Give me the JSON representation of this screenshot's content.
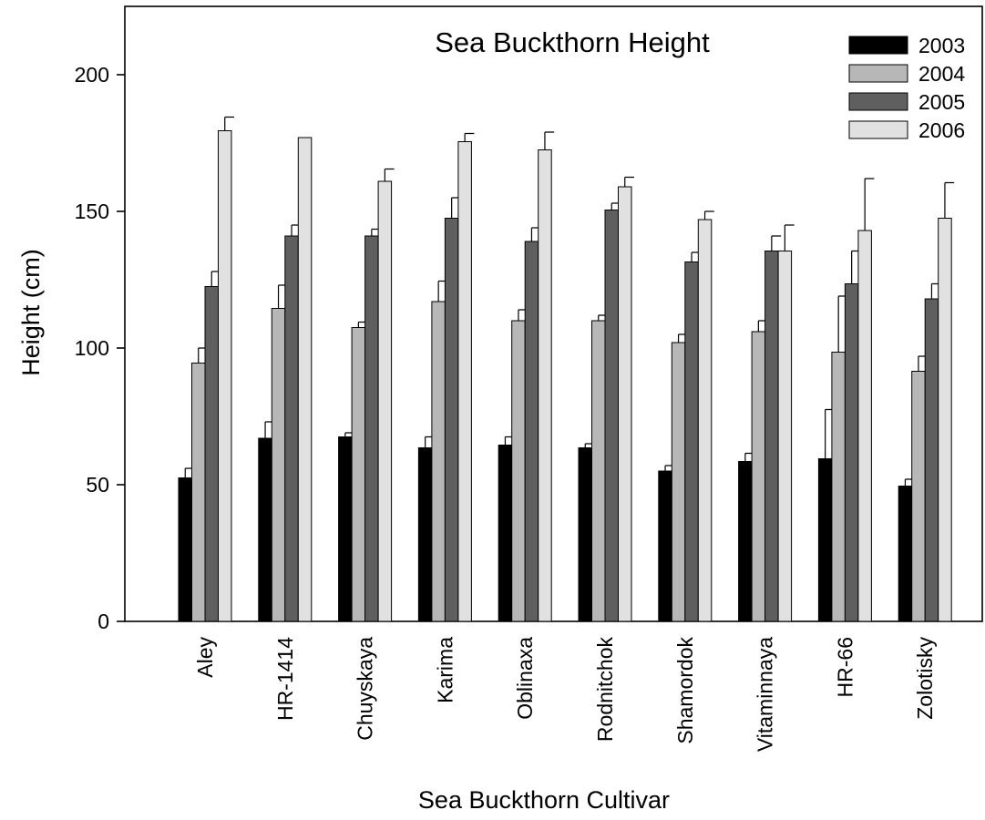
{
  "chart_data": {
    "type": "bar",
    "title": "Sea Buckthorn Height",
    "xlabel": "Sea Buckthorn Cultivar",
    "ylabel": "Height (cm)",
    "ylim": [
      0,
      225
    ],
    "yticks": [
      0,
      50,
      100,
      150,
      200
    ],
    "grid": false,
    "legend_position": "top-right",
    "categories": [
      "Aley",
      "HR-1414",
      "Chuyskaya",
      "Karima",
      "Oblinaxa",
      "Rodnitchok",
      "Shamordok",
      "Vitaminnaya",
      "HR-66",
      "Zolotisky"
    ],
    "series": [
      {
        "name": "2003",
        "color": "#000000",
        "values": [
          52.5,
          67,
          67.5,
          63.5,
          64.5,
          63.5,
          55,
          58.5,
          59.5,
          49.5
        ],
        "errors": [
          3.5,
          6,
          1.5,
          4,
          3,
          1.5,
          2,
          3,
          18,
          2.5
        ]
      },
      {
        "name": "2004",
        "color": "#b7b7b7",
        "values": [
          94.5,
          114.5,
          107.5,
          117,
          110,
          110,
          102,
          106,
          98.5,
          91.5
        ],
        "errors": [
          5.5,
          8.5,
          2,
          7.5,
          4,
          2,
          3,
          4,
          20.5,
          5.5
        ]
      },
      {
        "name": "2005",
        "color": "#5f5f5f",
        "values": [
          122.5,
          141,
          141,
          147.5,
          139,
          150.5,
          131.5,
          135.5,
          123.5,
          118
        ],
        "errors": [
          5.5,
          4,
          2.5,
          7.5,
          5,
          2.5,
          3.5,
          5.5,
          12,
          5.5
        ]
      },
      {
        "name": "2006",
        "color": "#e1e1e1",
        "values": [
          179.5,
          177,
          161,
          175.5,
          172.5,
          159,
          147,
          135.5,
          143,
          147.5
        ],
        "errors": [
          5,
          0,
          4.5,
          3,
          6.5,
          3.5,
          3,
          9.5,
          19,
          13
        ]
      }
    ]
  }
}
